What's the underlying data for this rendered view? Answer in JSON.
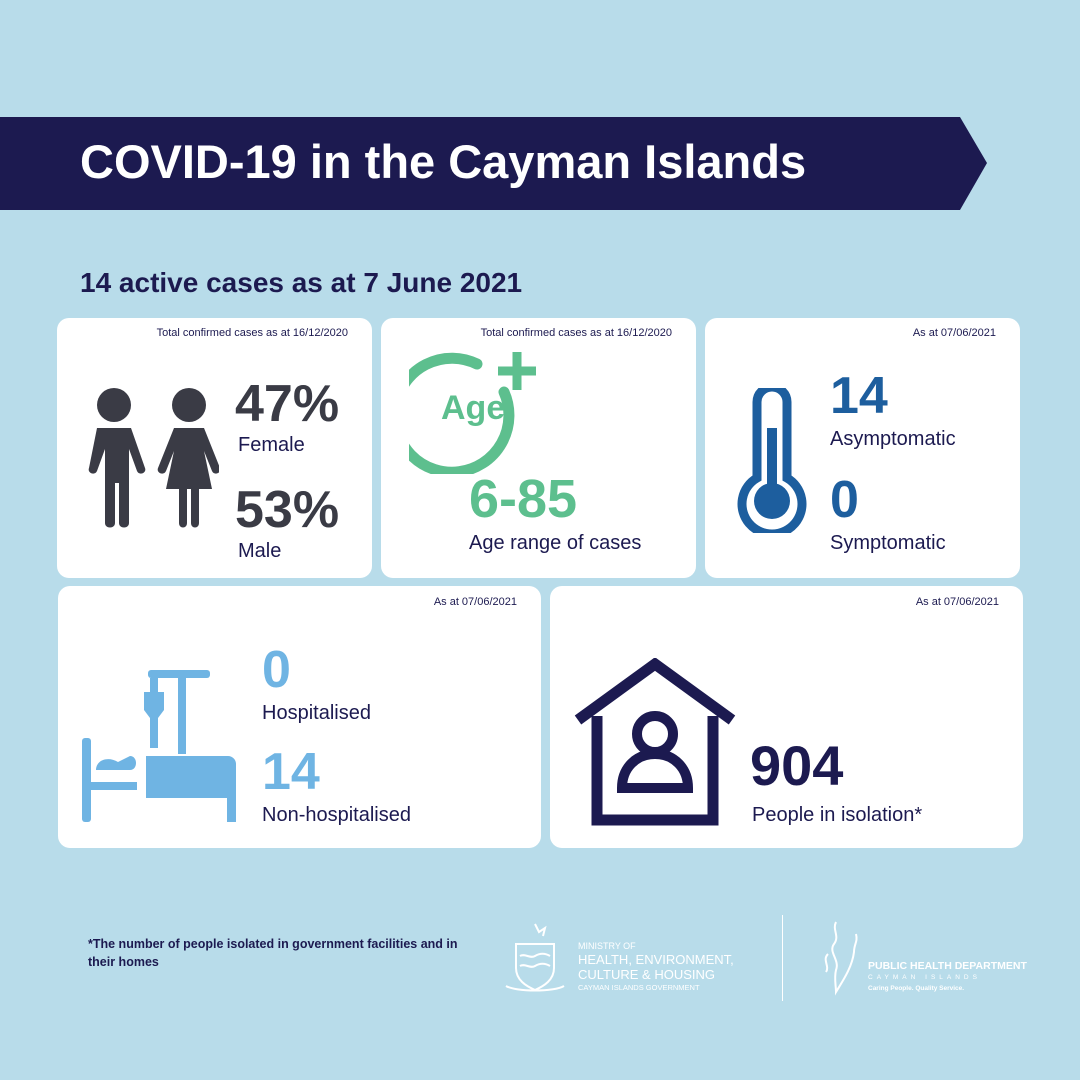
{
  "title": "COVID-19 in the Cayman Islands",
  "subtitle": "14 active cases as at 7 June 2021",
  "colors": {
    "background": "#b8dcea",
    "navy": "#1c1a50",
    "gender": "#3a3b45",
    "age": "#5dbf8e",
    "thermo": "#1d5e9e",
    "hospital": "#6fb4e3"
  },
  "gender": {
    "note": "Total confirmed cases as at 16/12/2020",
    "female_pct": "47%",
    "female_label": "Female",
    "male_pct": "53%",
    "male_label": "Male",
    "icon": "male-female-icon"
  },
  "age": {
    "note": "Total confirmed cases as at 16/12/2020",
    "icon_text": "Age",
    "range": "6-85",
    "label": "Age range of cases"
  },
  "symptoms": {
    "note": "As at 07/06/2021",
    "asym_value": "14",
    "asym_label": "Asymptomatic",
    "sym_value": "0",
    "sym_label": "Symptomatic",
    "icon": "thermometer-icon"
  },
  "hospital": {
    "note": "As at 07/06/2021",
    "hosp_value": "0",
    "hosp_label": "Hospitalised",
    "non_value": "14",
    "non_label": "Non-hospitalised",
    "icon": "hospital-bed-icon"
  },
  "isolation": {
    "note": "As at 07/06/2021",
    "value": "904",
    "label": "People in isolation*",
    "icon": "house-person-icon"
  },
  "footnote": "*The number of people isolated in government facilities and in their homes",
  "logos": {
    "ministry": [
      "MINISTRY OF",
      "HEALTH, ENVIRONMENT,",
      "CULTURE & HOUSING",
      "CAYMAN ISLANDS GOVERNMENT"
    ],
    "phd": [
      "PUBLIC HEALTH DEPARTMENT",
      "CAYMAN ISLANDS",
      "Caring People. Quality Service."
    ]
  }
}
